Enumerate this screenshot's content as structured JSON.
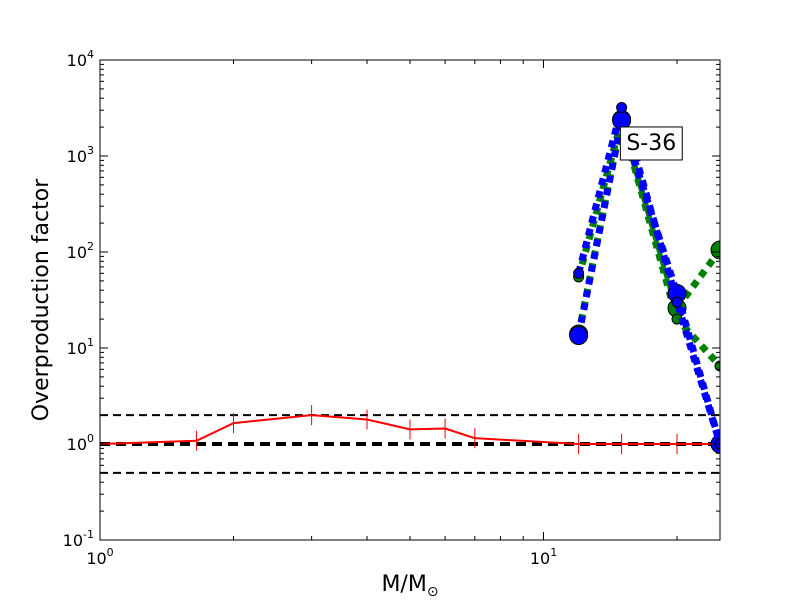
{
  "chart_data": {
    "type": "line",
    "xlabel": "M/M",
    "xlabel_subscript": "⊙",
    "ylabel": "Overproduction factor",
    "xscale": "log",
    "yscale": "log",
    "xlim": [
      1,
      25
    ],
    "ylim": [
      0.1,
      10000
    ],
    "xticks": [
      {
        "value": 1,
        "base": "10",
        "exp": "0"
      },
      {
        "value": 10,
        "base": "10",
        "exp": "1"
      }
    ],
    "yticks": [
      {
        "value": 0.1,
        "base": "10",
        "exp": "-1"
      },
      {
        "value": 1,
        "base": "10",
        "exp": "0"
      },
      {
        "value": 10,
        "base": "10",
        "exp": "1"
      },
      {
        "value": 100,
        "base": "10",
        "exp": "2"
      },
      {
        "value": 1000,
        "base": "10",
        "exp": "3"
      },
      {
        "value": 10000,
        "base": "10",
        "exp": "4"
      }
    ],
    "reference_lines": [
      {
        "y": 2,
        "style": "dashed",
        "weight": "thin"
      },
      {
        "y": 1,
        "style": "dashed",
        "weight": "thick"
      },
      {
        "y": 0.5,
        "style": "dashed",
        "weight": "thin"
      }
    ],
    "series": [
      {
        "color": "#ff0000",
        "style": "solid",
        "marker": "vline",
        "x": [
          1,
          1.65,
          2,
          3,
          4,
          5,
          6,
          7,
          12,
          15,
          20,
          25
        ],
        "y": [
          1.0,
          1.08,
          1.65,
          2.0,
          1.8,
          1.42,
          1.45,
          1.15,
          1.0,
          1.0,
          1.0,
          1.0
        ]
      },
      {
        "color": "#008000",
        "style": "dotted",
        "marker": "circle-large",
        "x": [
          12,
          15,
          20,
          25
        ],
        "y": [
          14,
          2400,
          26,
          105
        ]
      },
      {
        "color": "#008000",
        "style": "dotted",
        "marker": "circle-small",
        "x": [
          12,
          15,
          20,
          25
        ],
        "y": [
          55,
          2300,
          20,
          6.5
        ]
      },
      {
        "color": "#0000ff",
        "style": "dotted",
        "marker": "circle-large",
        "x": [
          12,
          15,
          20,
          25
        ],
        "y": [
          13.5,
          2350,
          37,
          1.0
        ]
      },
      {
        "color": "#0000ff",
        "style": "dotted",
        "marker": "circle-small",
        "x": [
          12,
          15,
          20,
          25
        ],
        "y": [
          60,
          3200,
          30,
          1.0
        ]
      }
    ],
    "annotations": [
      {
        "text": "S-36",
        "x": 17.5,
        "y": 1400
      }
    ]
  }
}
